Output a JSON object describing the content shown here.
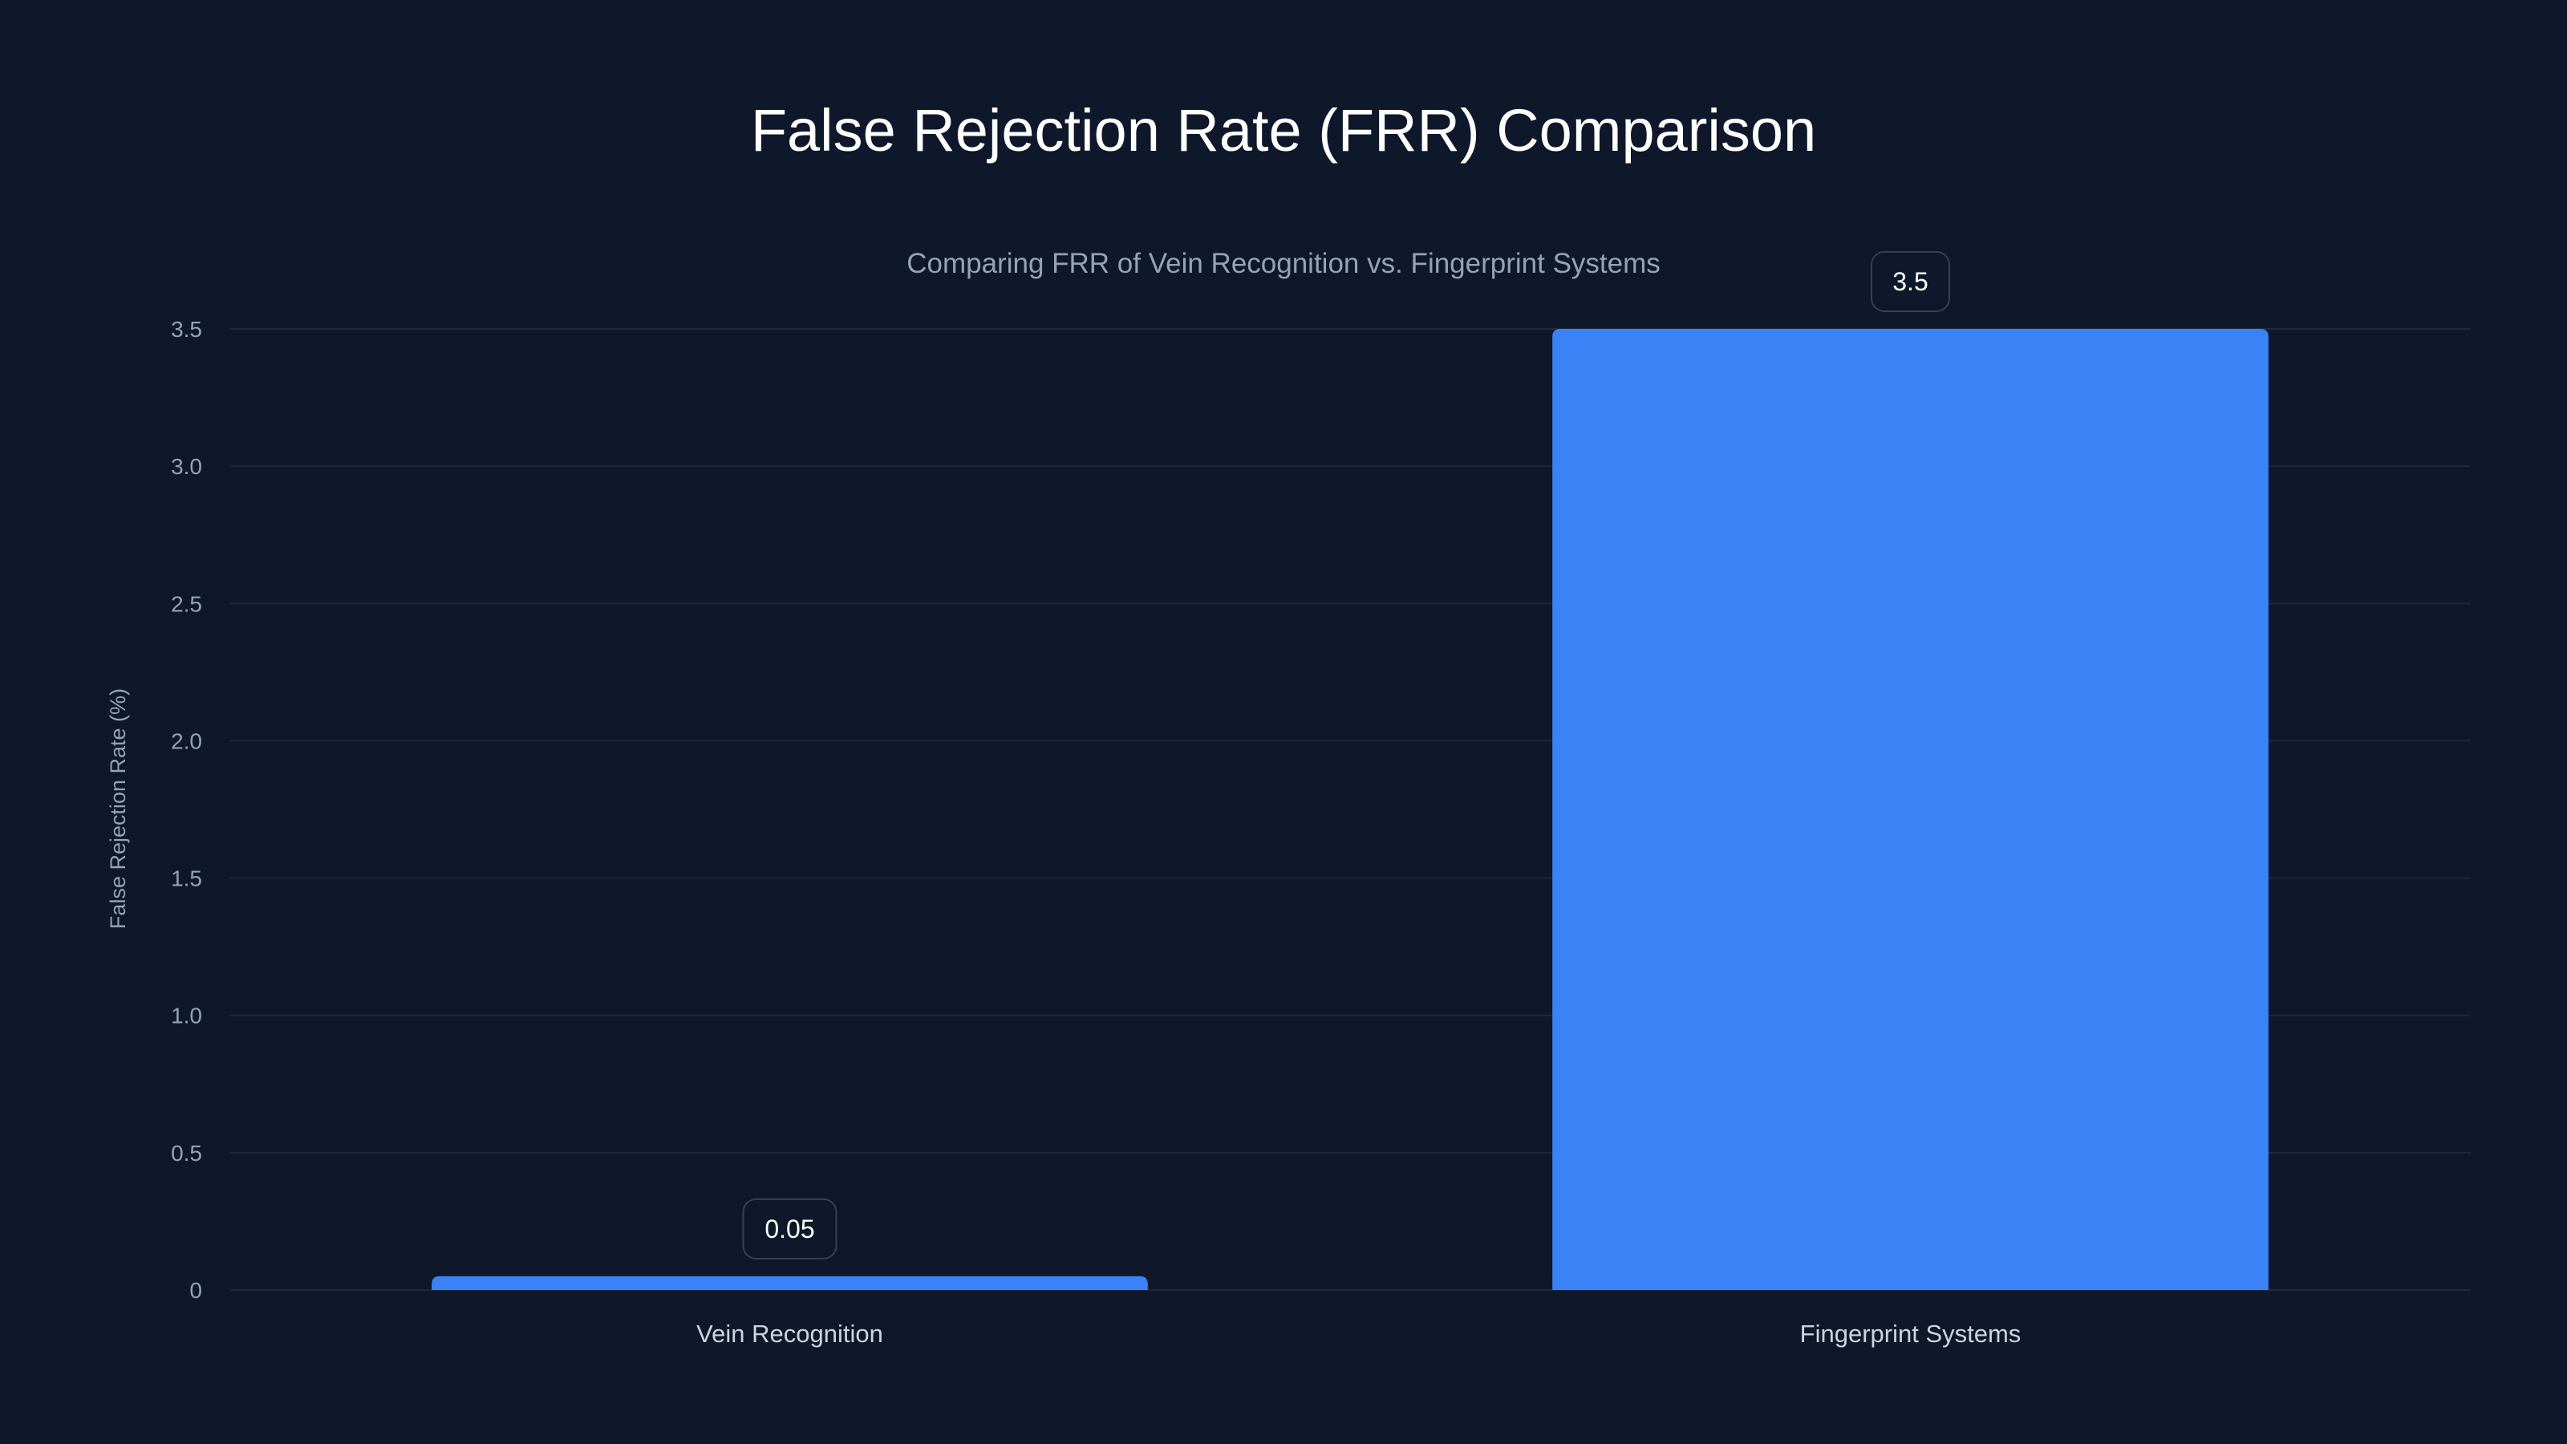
{
  "chart_data": {
    "type": "bar",
    "title": "False Rejection Rate (FRR) Comparison",
    "subtitle": "Comparing FRR of Vein Recognition vs. Fingerprint Systems",
    "xlabel": "",
    "ylabel": "False Rejection Rate (%)",
    "categories": [
      "Vein Recognition",
      "Fingerprint Systems"
    ],
    "values": [
      0.05,
      3.5
    ],
    "data_labels": [
      "0.05",
      "3.5"
    ],
    "ylim": [
      0,
      3.5
    ],
    "yticks": [
      0,
      0.5,
      1.0,
      1.5,
      2.0,
      2.5,
      3.0,
      3.5
    ],
    "ytick_labels": [
      "0",
      "0.5",
      "1.0",
      "1.5",
      "2.0",
      "2.5",
      "3.0",
      "3.5"
    ],
    "grid": true,
    "legend": "none",
    "colors": {
      "bar": "#3b82f6",
      "background": "#0f172a",
      "grid": "#1e293b"
    }
  }
}
